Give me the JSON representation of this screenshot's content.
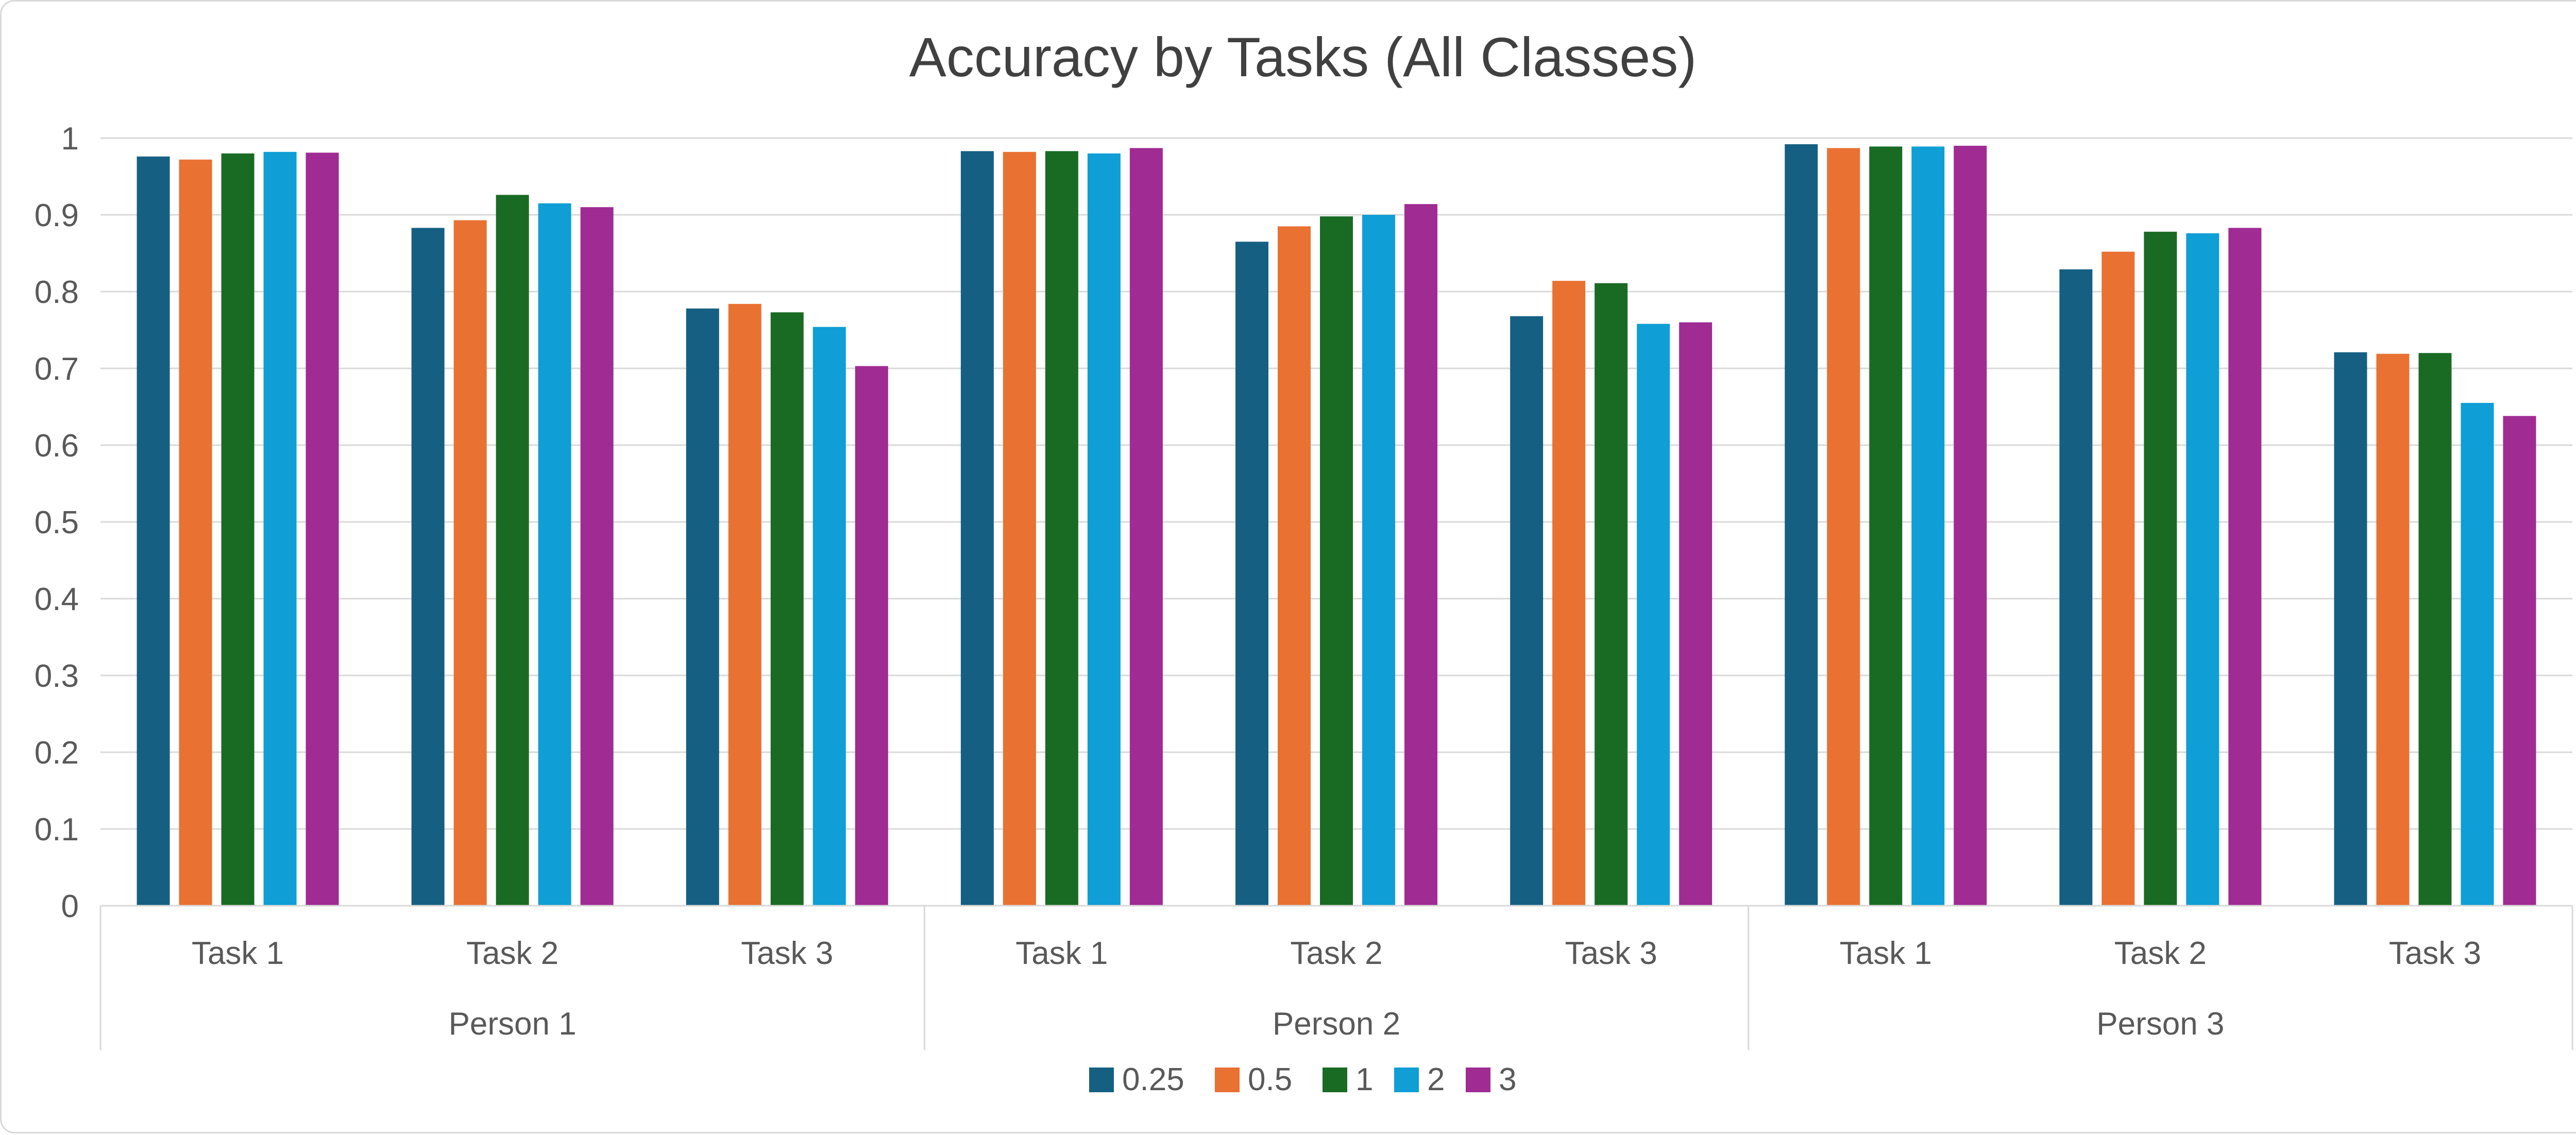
{
  "chart_data": {
    "type": "bar",
    "title": "Accuracy by Tasks (All Classes)",
    "xlabel": "",
    "ylabel": "",
    "ylim": [
      0,
      1
    ],
    "yticks": [
      "0",
      "0.1",
      "0.2",
      "0.3",
      "0.4",
      "0.5",
      "0.6",
      "0.7",
      "0.8",
      "0.9",
      "1"
    ],
    "grid": true,
    "legend_position": "bottom",
    "groups": [
      {
        "label": "Person 1",
        "categories": [
          "Task 1",
          "Task 2",
          "Task 3"
        ]
      },
      {
        "label": "Person 2",
        "categories": [
          "Task 1",
          "Task 2",
          "Task 3"
        ]
      },
      {
        "label": "Person 3",
        "categories": [
          "Task 1",
          "Task 2",
          "Task 3"
        ]
      }
    ],
    "series": [
      {
        "name": "0.25",
        "color": "#156082",
        "values": [
          0.976,
          0.883,
          0.778,
          0.983,
          0.865,
          0.768,
          0.992,
          0.829,
          0.721
        ]
      },
      {
        "name": "0.5",
        "color": "#E97132",
        "values": [
          0.972,
          0.893,
          0.784,
          0.982,
          0.885,
          0.814,
          0.987,
          0.852,
          0.719
        ]
      },
      {
        "name": "1",
        "color": "#196B24",
        "values": [
          0.98,
          0.926,
          0.773,
          0.983,
          0.898,
          0.811,
          0.989,
          0.878,
          0.72
        ]
      },
      {
        "name": "2",
        "color": "#0F9ED5",
        "values": [
          0.982,
          0.915,
          0.754,
          0.98,
          0.9,
          0.758,
          0.989,
          0.876,
          0.655
        ]
      },
      {
        "name": "3",
        "color": "#A02B93",
        "values": [
          0.981,
          0.91,
          0.703,
          0.987,
          0.914,
          0.76,
          0.99,
          0.883,
          0.638
        ]
      }
    ]
  }
}
